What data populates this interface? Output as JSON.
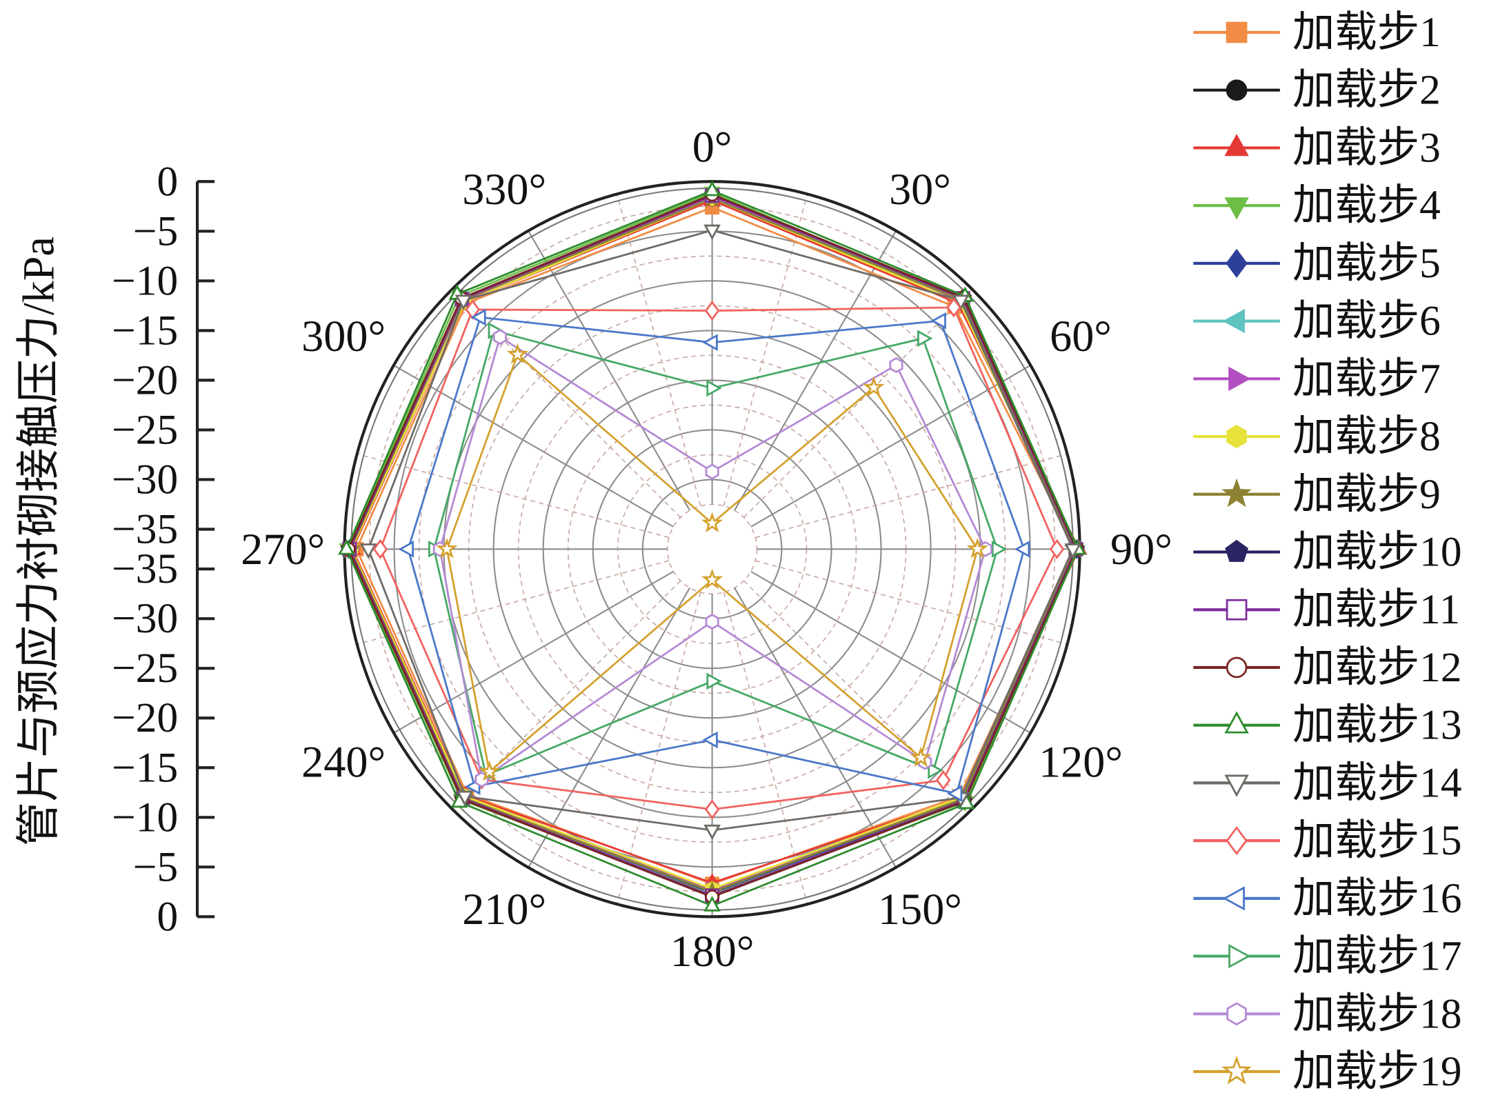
{
  "chart_data": {
    "type": "line",
    "polar": true,
    "ylabel": "管片与预应力衬砌接触压力/kPa",
    "theta_zero": "top",
    "theta_direction": "clockwise",
    "theta_ticks": [
      0,
      30,
      60,
      90,
      120,
      150,
      180,
      210,
      240,
      270,
      300,
      330
    ],
    "theta_tick_labels": [
      "0°",
      "30°",
      "60°",
      "90°",
      "120°",
      "150°",
      "180°",
      "210°",
      "240°",
      "270°",
      "300°",
      "330°"
    ],
    "r_range": [
      -37,
      0
    ],
    "r_ticks": [
      0,
      -5,
      -10,
      -15,
      -20,
      -25,
      -30,
      -35
    ],
    "r_tick_labels": [
      "0",
      "−5",
      "−10",
      "−15",
      "−20",
      "−25",
      "−30",
      "−35"
    ],
    "grid": true,
    "legend_position": "right",
    "x": [
      0,
      45,
      90,
      135,
      180,
      225,
      270,
      315
    ],
    "series": [
      {
        "name": "加载步1",
        "color": "#F28C45",
        "marker": "square",
        "filled": true,
        "values": [
          -2.6,
          -2.5,
          -0.4,
          -1.8,
          -3.3,
          -2.1,
          -1.2,
          -2.0
        ]
      },
      {
        "name": "加载步2",
        "color": "#1A1A1A",
        "marker": "circle",
        "filled": true,
        "values": [
          -1.4,
          -1.3,
          -0.3,
          -1.2,
          -2.0,
          -1.5,
          -0.5,
          -1.5
        ]
      },
      {
        "name": "加载步3",
        "color": "#E53935",
        "marker": "triangle-up",
        "filled": true,
        "values": [
          -1.9,
          -2.0,
          -0.1,
          -1.5,
          -3.4,
          -1.9,
          -0.8,
          -1.8
        ]
      },
      {
        "name": "加载步4",
        "color": "#6DBE45",
        "marker": "triangle-down",
        "filled": true,
        "values": [
          -1.1,
          -1.5,
          -0.4,
          -1.0,
          -2.2,
          -1.3,
          -0.3,
          -1.0
        ]
      },
      {
        "name": "加载步5",
        "color": "#2E3F99",
        "marker": "diamond",
        "filled": true,
        "values": [
          -1.6,
          -1.4,
          -0.3,
          -1.3,
          -2.4,
          -1.6,
          -0.5,
          -1.4
        ]
      },
      {
        "name": "加载步6",
        "color": "#5FC3C0",
        "marker": "triangle-left",
        "filled": true,
        "values": [
          -1.5,
          -1.6,
          -0.4,
          -1.4,
          -2.6,
          -1.7,
          -0.6,
          -1.6
        ]
      },
      {
        "name": "加载步7",
        "color": "#B24FC2",
        "marker": "triangle-right",
        "filled": true,
        "values": [
          -1.5,
          -1.7,
          -0.4,
          -1.5,
          -2.7,
          -1.8,
          -0.6,
          -1.7
        ]
      },
      {
        "name": "加载步8",
        "color": "#E6E23A",
        "marker": "hexagon",
        "filled": true,
        "values": [
          -1.7,
          -1.8,
          -0.5,
          -1.6,
          -2.8,
          -1.8,
          -0.7,
          -1.8
        ]
      },
      {
        "name": "加载步9",
        "color": "#8C8232",
        "marker": "star",
        "filled": true,
        "values": [
          -1.7,
          -1.5,
          -0.5,
          -1.4,
          -2.5,
          -1.6,
          -0.6,
          -1.5
        ]
      },
      {
        "name": "加载步10",
        "color": "#2B2463",
        "marker": "pentagon",
        "filled": true,
        "values": [
          -1.3,
          -1.2,
          -0.3,
          -1.1,
          -2.0,
          -1.4,
          -0.4,
          -1.3
        ]
      },
      {
        "name": "加载步11",
        "color": "#7E2E9E",
        "marker": "square",
        "filled": false,
        "values": [
          -1.4,
          -1.3,
          -0.4,
          -1.2,
          -2.1,
          -1.5,
          -0.5,
          -1.4
        ]
      },
      {
        "name": "加载步12",
        "color": "#7A2323",
        "marker": "circle",
        "filled": false,
        "values": [
          -1.3,
          -1.2,
          -0.3,
          -1.1,
          -2.0,
          -1.4,
          -0.4,
          -1.3
        ]
      },
      {
        "name": "加载步13",
        "color": "#2E8B2E",
        "marker": "triangle-up",
        "filled": false,
        "values": [
          -0.9,
          -1.0,
          -0.2,
          -0.8,
          -1.1,
          -1.0,
          -0.2,
          -0.7
        ]
      },
      {
        "name": "加载步14",
        "color": "#6E6A66",
        "marker": "triangle-down",
        "filled": false,
        "values": [
          -4.9,
          -1.6,
          -0.7,
          -1.6,
          -8.7,
          -1.8,
          -2.4,
          -1.6
        ]
      },
      {
        "name": "加载步15",
        "color": "#F0625F",
        "marker": "diamond",
        "filled": false,
        "values": [
          -13.0,
          -2.6,
          -2.3,
          -4.1,
          -10.8,
          -4.2,
          -3.6,
          -2.9
        ]
      },
      {
        "name": "加载步16",
        "color": "#4A78C8",
        "marker": "triangle-left",
        "filled": false,
        "values": [
          -16.2,
          -4.5,
          -5.6,
          -2.2,
          -17.8,
          -3.2,
          -6.4,
          -4.0
        ]
      },
      {
        "name": "加载步17",
        "color": "#46A866",
        "marker": "triangle-right",
        "filled": false,
        "values": [
          -20.8,
          -7.0,
          -8.3,
          -5.5,
          -23.7,
          -4.8,
          -9.0,
          -5.9
        ]
      },
      {
        "name": "加载步18",
        "color": "#B58AD6",
        "marker": "hexagon",
        "filled": false,
        "values": [
          -29.2,
          -10.8,
          -9.5,
          -6.7,
          -29.7,
          -4.2,
          -9.6,
          -6.8
        ]
      },
      {
        "name": "加载步19",
        "color": "#D4A12E",
        "marker": "star",
        "filled": false,
        "values": [
          -34.4,
          -14.0,
          -10.3,
          -7.3,
          -33.9,
          -5.3,
          -10.3,
          -9.3
        ]
      }
    ]
  }
}
